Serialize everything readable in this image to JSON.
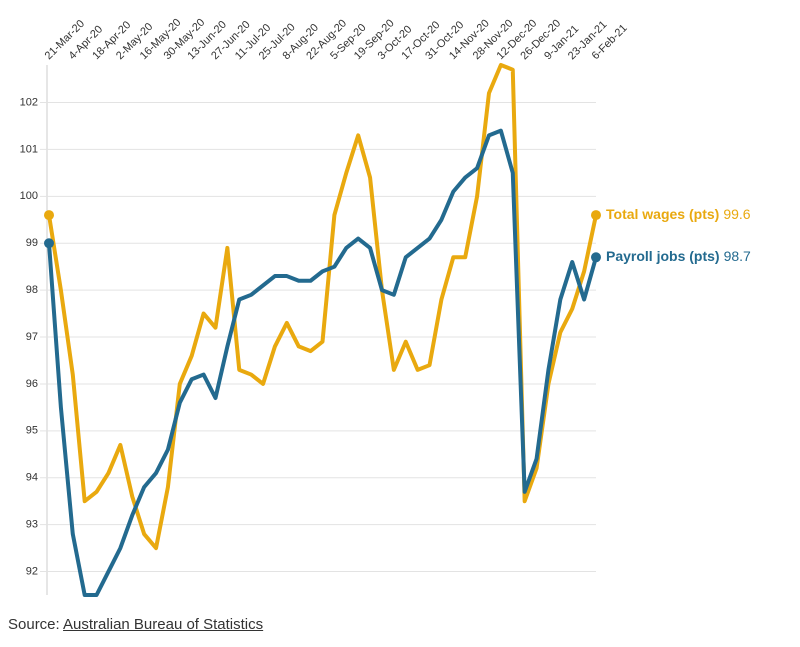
{
  "chart_data": {
    "type": "line",
    "categories": [
      "21-Mar-20",
      null,
      "4-Apr-20",
      null,
      "18-Apr-20",
      null,
      "2-May-20",
      null,
      "16-May-20",
      null,
      "30-May-20",
      null,
      "13-Jun-20",
      null,
      "27-Jun-20",
      null,
      "11-Jul-20",
      null,
      "25-Jul-20",
      null,
      "8-Aug-20",
      null,
      "22-Aug-20",
      null,
      "5-Sep-20",
      null,
      "19-Sep-20",
      null,
      "3-Oct-20",
      null,
      "17-Oct-20",
      null,
      "31-Oct-20",
      null,
      "14-Nov-20",
      null,
      "28-Nov-20",
      null,
      "12-Dec-20",
      null,
      "26-Dec-20",
      null,
      "9-Jan-21",
      null,
      "23-Jan-21",
      null,
      "6-Feb-21"
    ],
    "series": [
      {
        "name": "Total wages (pts)",
        "color": "#e9a90f",
        "values": [
          99.6,
          98.0,
          96.2,
          93.5,
          93.7,
          94.1,
          94.7,
          93.6,
          92.8,
          92.5,
          93.8,
          96.0,
          96.6,
          97.5,
          97.2,
          98.9,
          96.3,
          96.2,
          96.0,
          96.8,
          97.3,
          96.8,
          96.7,
          96.9,
          99.6,
          100.5,
          101.3,
          100.4,
          98.0,
          96.3,
          96.9,
          96.3,
          96.4,
          97.8,
          98.7,
          98.7,
          100.0,
          102.2,
          102.8,
          102.7,
          93.5,
          94.2,
          96.0,
          97.1,
          97.6,
          98.4,
          99.6
        ]
      },
      {
        "name": "Payroll jobs (pts)",
        "color": "#236a8f",
        "values": [
          99.0,
          95.5,
          92.8,
          91.5,
          91.5,
          92.0,
          92.5,
          93.2,
          93.8,
          94.1,
          94.6,
          95.6,
          96.1,
          96.2,
          95.7,
          96.8,
          97.8,
          97.9,
          98.1,
          98.3,
          98.3,
          98.2,
          98.2,
          98.4,
          98.5,
          98.9,
          99.1,
          98.9,
          98.0,
          97.9,
          98.7,
          98.9,
          99.1,
          99.5,
          100.1,
          100.4,
          100.6,
          101.3,
          101.4,
          100.5,
          93.7,
          94.4,
          96.3,
          97.8,
          98.6,
          97.8,
          98.7
        ]
      }
    ],
    "ylim": [
      91.5,
      102.8
    ],
    "yticks": [
      92,
      93,
      94,
      95,
      96,
      97,
      98,
      99,
      100,
      101,
      102
    ],
    "grid": true,
    "source_label": "Source:",
    "source_link": "Australian Bureau of Statistics"
  }
}
